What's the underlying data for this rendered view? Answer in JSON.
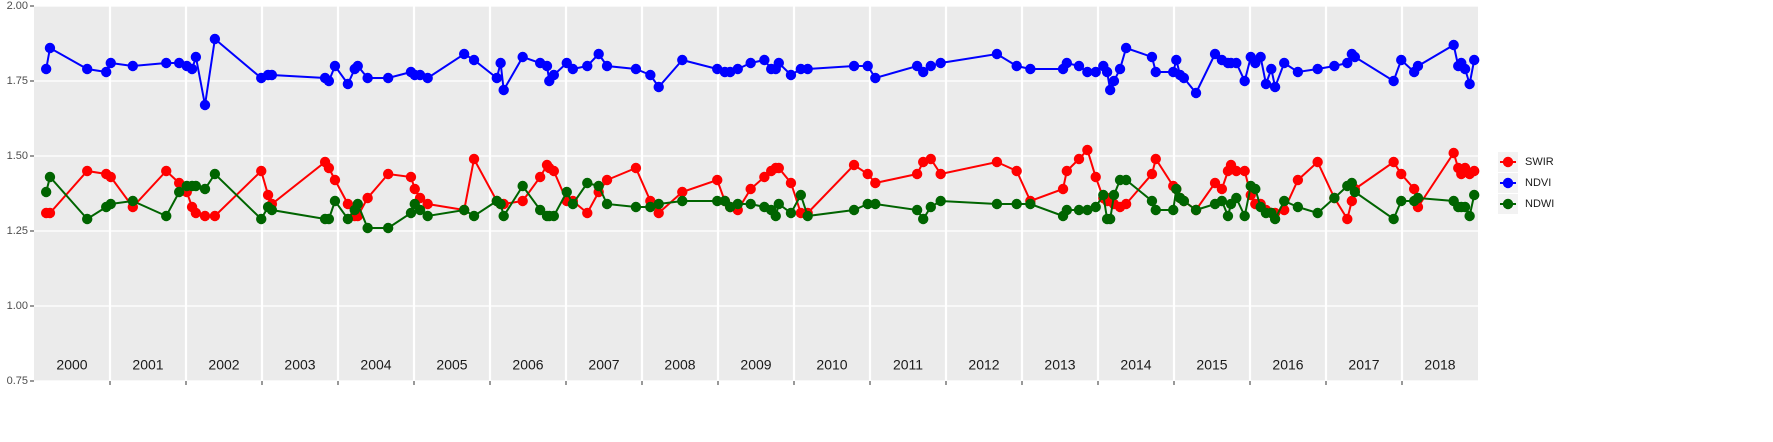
{
  "chart_data": {
    "type": "line",
    "x": [
      2000.16,
      2000.21,
      2000.7,
      2000.95,
      2001.01,
      2001.3,
      2001.74,
      2001.91,
      2002.01,
      2002.08,
      2002.13,
      2002.25,
      2002.38,
      2002.99,
      2003.08,
      2003.13,
      2003.83,
      2003.88,
      2003.96,
      2004.13,
      2004.22,
      2004.26,
      2004.39,
      2004.66,
      2004.96,
      2005.01,
      2005.08,
      2005.18,
      2005.66,
      2005.79,
      2006.09,
      2006.14,
      2006.18,
      2006.43,
      2006.66,
      2006.75,
      2006.78,
      2006.84,
      2007.01,
      2007.09,
      2007.28,
      2007.43,
      2007.54,
      2007.92,
      2008.11,
      2008.22,
      2008.53,
      2008.99,
      2009.09,
      2009.16,
      2009.26,
      2009.43,
      2009.61,
      2009.7,
      2009.76,
      2009.8,
      2009.96,
      2010.09,
      2010.18,
      2010.79,
      2010.97,
      2011.07,
      2011.62,
      2011.7,
      2011.8,
      2011.93,
      2012.67,
      2012.93,
      2013.11,
      2013.54,
      2013.59,
      2013.75,
      2013.86,
      2013.97,
      2014.07,
      2014.12,
      2014.16,
      2014.21,
      2014.29,
      2014.37,
      2014.71,
      2014.76,
      2014.99,
      2015.03,
      2015.08,
      2015.13,
      2015.29,
      2015.54,
      2015.63,
      2015.71,
      2015.75,
      2015.82,
      2015.93,
      2016.01,
      2016.07,
      2016.14,
      2016.21,
      2016.28,
      2016.33,
      2016.45,
      2016.63,
      2016.89,
      2017.11,
      2017.28,
      2017.34,
      2017.38,
      2017.89,
      2017.99,
      2018.16,
      2018.21,
      2018.68,
      2018.74,
      2018.78,
      2018.83,
      2018.89,
      2018.95
    ],
    "series": [
      {
        "name": "SWIR",
        "color": "#ff0000",
        "values": [
          1.31,
          1.31,
          1.45,
          1.44,
          1.43,
          1.33,
          1.45,
          1.41,
          1.38,
          1.33,
          1.31,
          1.3,
          1.3,
          1.45,
          1.37,
          1.34,
          1.48,
          1.46,
          1.42,
          1.34,
          1.3,
          1.3,
          1.36,
          1.44,
          1.43,
          1.39,
          1.36,
          1.34,
          1.32,
          1.49,
          1.35,
          1.34,
          1.34,
          1.35,
          1.43,
          1.47,
          1.46,
          1.45,
          1.35,
          1.35,
          1.31,
          1.38,
          1.42,
          1.46,
          1.35,
          1.31,
          1.38,
          1.42,
          1.35,
          1.33,
          1.32,
          1.39,
          1.43,
          1.45,
          1.46,
          1.46,
          1.41,
          1.31,
          1.31,
          1.47,
          1.44,
          1.41,
          1.44,
          1.48,
          1.49,
          1.44,
          1.48,
          1.45,
          1.35,
          1.39,
          1.45,
          1.49,
          1.52,
          1.43,
          1.36,
          1.35,
          1.36,
          1.34,
          1.33,
          1.34,
          1.44,
          1.49,
          1.4,
          1.39,
          1.36,
          1.35,
          1.32,
          1.41,
          1.39,
          1.45,
          1.47,
          1.45,
          1.45,
          1.37,
          1.34,
          1.34,
          1.32,
          1.31,
          1.31,
          1.32,
          1.42,
          1.48,
          1.36,
          1.29,
          1.35,
          1.39,
          1.48,
          1.44,
          1.39,
          1.33,
          1.51,
          1.46,
          1.44,
          1.46,
          1.44,
          1.45
        ]
      },
      {
        "name": "NDVI",
        "color": "#0000ff",
        "values": [
          1.79,
          1.86,
          1.79,
          1.78,
          1.81,
          1.8,
          1.81,
          1.81,
          1.8,
          1.79,
          1.83,
          1.67,
          1.89,
          1.76,
          1.77,
          1.77,
          1.76,
          1.75,
          1.8,
          1.74,
          1.79,
          1.8,
          1.76,
          1.76,
          1.78,
          1.77,
          1.77,
          1.76,
          1.84,
          1.82,
          1.76,
          1.81,
          1.72,
          1.83,
          1.81,
          1.8,
          1.75,
          1.77,
          1.81,
          1.79,
          1.8,
          1.84,
          1.8,
          1.79,
          1.77,
          1.73,
          1.82,
          1.79,
          1.78,
          1.78,
          1.79,
          1.81,
          1.82,
          1.79,
          1.79,
          1.81,
          1.77,
          1.79,
          1.79,
          1.8,
          1.8,
          1.76,
          1.8,
          1.78,
          1.8,
          1.81,
          1.84,
          1.8,
          1.79,
          1.79,
          1.81,
          1.8,
          1.78,
          1.78,
          1.8,
          1.78,
          1.72,
          1.75,
          1.79,
          1.86,
          1.83,
          1.78,
          1.78,
          1.82,
          1.77,
          1.76,
          1.71,
          1.84,
          1.82,
          1.81,
          1.81,
          1.81,
          1.75,
          1.83,
          1.81,
          1.83,
          1.74,
          1.79,
          1.73,
          1.81,
          1.78,
          1.79,
          1.8,
          1.81,
          1.84,
          1.83,
          1.75,
          1.82,
          1.78,
          1.8,
          1.87,
          1.8,
          1.81,
          1.79,
          1.74,
          1.82
        ]
      },
      {
        "name": "NDWI",
        "color": "#006400",
        "values": [
          1.38,
          1.43,
          1.29,
          1.33,
          1.34,
          1.35,
          1.3,
          1.38,
          1.4,
          1.4,
          1.4,
          1.39,
          1.44,
          1.29,
          1.33,
          1.32,
          1.29,
          1.29,
          1.35,
          1.29,
          1.32,
          1.34,
          1.26,
          1.26,
          1.31,
          1.34,
          1.32,
          1.3,
          1.32,
          1.3,
          1.35,
          1.34,
          1.3,
          1.4,
          1.32,
          1.3,
          1.3,
          1.3,
          1.38,
          1.34,
          1.41,
          1.4,
          1.34,
          1.33,
          1.33,
          1.34,
          1.35,
          1.35,
          1.35,
          1.33,
          1.34,
          1.34,
          1.33,
          1.32,
          1.3,
          1.34,
          1.31,
          1.37,
          1.3,
          1.32,
          1.34,
          1.34,
          1.32,
          1.29,
          1.33,
          1.35,
          1.34,
          1.34,
          1.34,
          1.3,
          1.32,
          1.32,
          1.32,
          1.33,
          1.37,
          1.29,
          1.29,
          1.37,
          1.42,
          1.42,
          1.35,
          1.32,
          1.32,
          1.39,
          1.36,
          1.35,
          1.32,
          1.34,
          1.35,
          1.3,
          1.34,
          1.36,
          1.3,
          1.4,
          1.39,
          1.33,
          1.31,
          1.31,
          1.29,
          1.35,
          1.33,
          1.31,
          1.36,
          1.4,
          1.41,
          1.38,
          1.29,
          1.35,
          1.35,
          1.36,
          1.35,
          1.33,
          1.33,
          1.33,
          1.3,
          1.37
        ]
      }
    ],
    "xlim": [
      2000,
      2019
    ],
    "xticks": [
      2001,
      2002,
      2003,
      2004,
      2005,
      2006,
      2007,
      2008,
      2009,
      2010,
      2011,
      2012,
      2013,
      2014,
      2015,
      2016,
      2017,
      2018
    ],
    "ylim": [
      0.75,
      2.0
    ],
    "yticks": [
      0.75,
      {
        "value": 1.0,
        "label": "1.00"
      },
      1.25,
      {
        "value": 1.5,
        "label": "1.50"
      },
      1.75,
      {
        "value": 2.0,
        "label": "2.00"
      }
    ],
    "annotations": [
      {
        "x": 2000.5,
        "label": "2000"
      },
      {
        "x": 2001.5,
        "label": "2001"
      },
      {
        "x": 2002.5,
        "label": "2002"
      },
      {
        "x": 2003.5,
        "label": "2003"
      },
      {
        "x": 2004.5,
        "label": "2004"
      },
      {
        "x": 2005.5,
        "label": "2005"
      },
      {
        "x": 2006.5,
        "label": "2006"
      },
      {
        "x": 2007.5,
        "label": "2007"
      },
      {
        "x": 2008.5,
        "label": "2008"
      },
      {
        "x": 2009.5,
        "label": "2009"
      },
      {
        "x": 2010.5,
        "label": "2010"
      },
      {
        "x": 2011.5,
        "label": "2011"
      },
      {
        "x": 2012.5,
        "label": "2012"
      },
      {
        "x": 2013.5,
        "label": "2013"
      },
      {
        "x": 2014.5,
        "label": "2014"
      },
      {
        "x": 2015.5,
        "label": "2015"
      },
      {
        "x": 2016.5,
        "label": "2016"
      },
      {
        "x": 2017.5,
        "label": "2017"
      },
      {
        "x": 2018.5,
        "label": "2018"
      }
    ],
    "grid": true,
    "legend": "right"
  }
}
